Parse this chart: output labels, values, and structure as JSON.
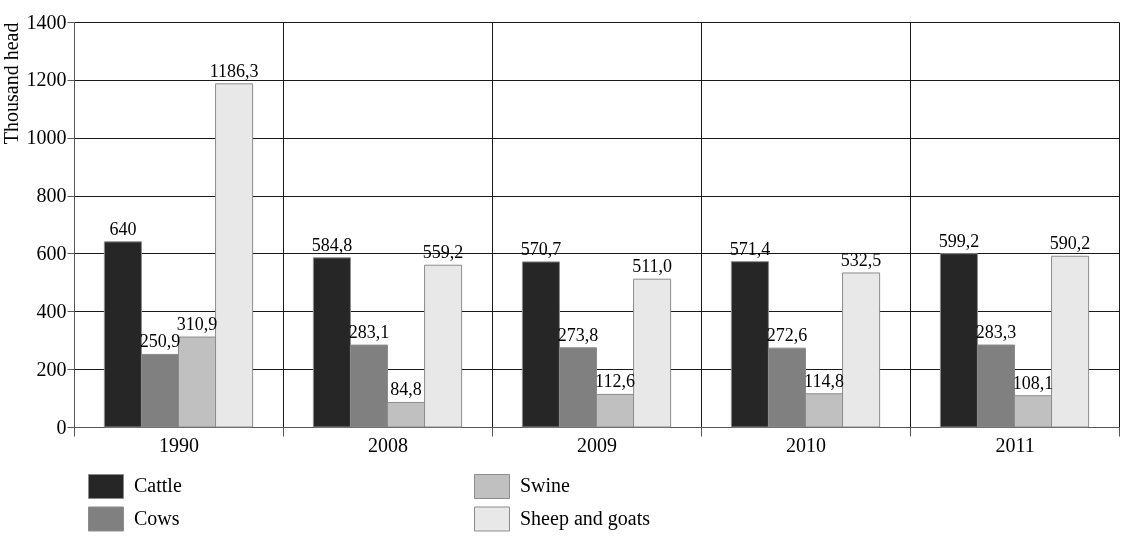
{
  "chart_data": {
    "type": "bar",
    "ylabel": "Thousand head",
    "categories": [
      "1990",
      "2008",
      "2009",
      "2010",
      "2011"
    ],
    "series": [
      {
        "name": "Cattle",
        "color": "#262626",
        "values": [
          640,
          584.8,
          570.7,
          571.4,
          599.2
        ],
        "value_labels": [
          "640",
          "584,8",
          "570,7",
          "571,4",
          "599,2"
        ]
      },
      {
        "name": "Cows",
        "color": "#808080",
        "values": [
          250.9,
          283.1,
          273.8,
          272.6,
          283.3
        ],
        "value_labels": [
          "250,9",
          "283,1",
          "273,8",
          "272,6",
          "283,3"
        ]
      },
      {
        "name": "Swine",
        "color": "#c0c0c0",
        "values": [
          310.9,
          84.8,
          112.6,
          114.8,
          108.1
        ],
        "value_labels": [
          "310,9",
          "84,8",
          "112,6",
          "114,8",
          "108,1"
        ]
      },
      {
        "name": "Sheep and goats",
        "color": "#e8e8e8",
        "values": [
          1186.3,
          559.2,
          511.0,
          532.5,
          590.2
        ],
        "value_labels": [
          "1186,3",
          "559,2",
          "511,0",
          "532,5",
          "590,2"
        ]
      }
    ],
    "ylim": [
      0,
      1400
    ],
    "yticks": [
      0,
      200,
      400,
      600,
      800,
      1000,
      1200,
      1400
    ],
    "grid": true,
    "legend": "bottom"
  }
}
